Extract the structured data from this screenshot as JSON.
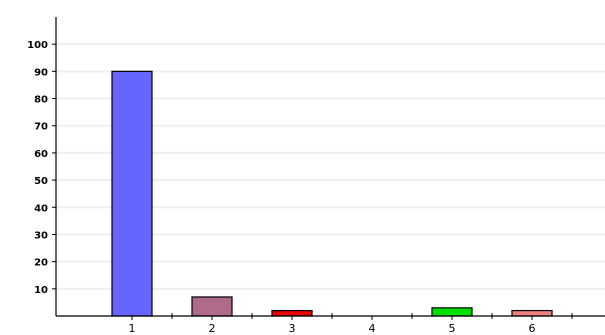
{
  "chart_data": {
    "type": "bar",
    "title": "",
    "xlabel": "",
    "ylabel": "",
    "categories": [
      "1",
      "2",
      "3",
      "4",
      "5",
      "6"
    ],
    "values": [
      90,
      7,
      2,
      0,
      3,
      2
    ],
    "colors": [
      "#6666ff",
      "#b06b8b",
      "#e80000",
      "#000000",
      "#00e000",
      "#f08080"
    ],
    "ylim": [
      0,
      110
    ],
    "yticks": [
      10,
      20,
      30,
      40,
      50,
      60,
      70,
      80,
      90,
      100
    ],
    "grid": true,
    "grid_color": "#eeeeee",
    "legend": false
  }
}
